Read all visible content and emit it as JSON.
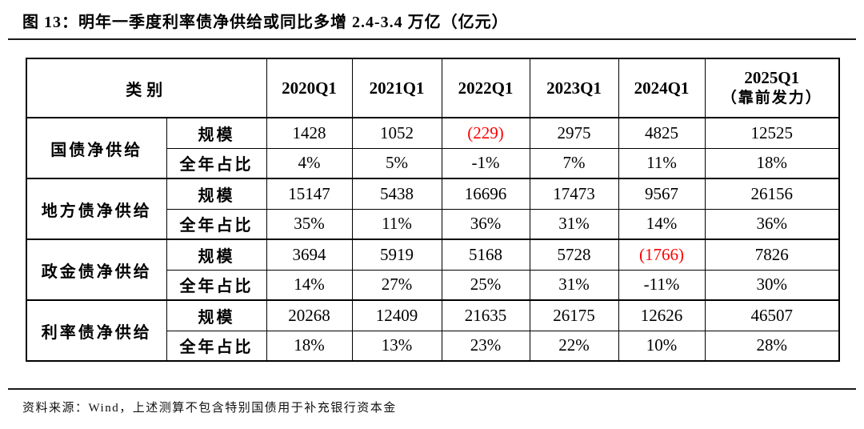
{
  "title": "图 13：明年一季度利率债净供给或同比多增 2.4-3.4 万亿（亿元）",
  "source_note": "资料来源：Wind，上述测算不包含特别国债用于补充银行资本金",
  "colors": {
    "negative_red": "#ff0000",
    "text": "#000000",
    "border": "#000000"
  },
  "table": {
    "category_header": "类别",
    "quarters": [
      "2020Q1",
      "2021Q1",
      "2022Q1",
      "2023Q1",
      "2024Q1"
    ],
    "final_quarter": {
      "line1": "2025Q1",
      "line2": "（靠前发力）"
    },
    "labels": {
      "scale": "规模",
      "share": "全年占比"
    },
    "groups": [
      {
        "name": "国债净供给",
        "scale": [
          {
            "v": "1428",
            "red": false
          },
          {
            "v": "1052",
            "red": false
          },
          {
            "v": "(229)",
            "red": true
          },
          {
            "v": "2975",
            "red": false
          },
          {
            "v": "4825",
            "red": false
          },
          {
            "v": "12525",
            "red": false
          }
        ],
        "share": [
          {
            "v": "4%",
            "red": false
          },
          {
            "v": "5%",
            "red": false
          },
          {
            "v": "-1%",
            "red": false
          },
          {
            "v": "7%",
            "red": false
          },
          {
            "v": "11%",
            "red": false
          },
          {
            "v": "18%",
            "red": false
          }
        ]
      },
      {
        "name": "地方债净供给",
        "scale": [
          {
            "v": "15147",
            "red": false
          },
          {
            "v": "5438",
            "red": false
          },
          {
            "v": "16696",
            "red": false
          },
          {
            "v": "17473",
            "red": false
          },
          {
            "v": "9567",
            "red": false
          },
          {
            "v": "26156",
            "red": false
          }
        ],
        "share": [
          {
            "v": "35%",
            "red": false
          },
          {
            "v": "11%",
            "red": false
          },
          {
            "v": "36%",
            "red": false
          },
          {
            "v": "31%",
            "red": false
          },
          {
            "v": "14%",
            "red": false
          },
          {
            "v": "36%",
            "red": false
          }
        ]
      },
      {
        "name": "政金债净供给",
        "scale": [
          {
            "v": "3694",
            "red": false
          },
          {
            "v": "5919",
            "red": false
          },
          {
            "v": "5168",
            "red": false
          },
          {
            "v": "5728",
            "red": false
          },
          {
            "v": "(1766)",
            "red": true
          },
          {
            "v": "7826",
            "red": false
          }
        ],
        "share": [
          {
            "v": "14%",
            "red": false
          },
          {
            "v": "27%",
            "red": false
          },
          {
            "v": "25%",
            "red": false
          },
          {
            "v": "31%",
            "red": false
          },
          {
            "v": "-11%",
            "red": false
          },
          {
            "v": "30%",
            "red": false
          }
        ]
      },
      {
        "name": "利率债净供给",
        "scale": [
          {
            "v": "20268",
            "red": false
          },
          {
            "v": "12409",
            "red": false
          },
          {
            "v": "21635",
            "red": false
          },
          {
            "v": "26175",
            "red": false
          },
          {
            "v": "12626",
            "red": false
          },
          {
            "v": "46507",
            "red": false
          }
        ],
        "share": [
          {
            "v": "18%",
            "red": false
          },
          {
            "v": "13%",
            "red": false
          },
          {
            "v": "23%",
            "red": false
          },
          {
            "v": "22%",
            "red": false
          },
          {
            "v": "10%",
            "red": false
          },
          {
            "v": "28%",
            "red": false
          }
        ]
      }
    ]
  }
}
